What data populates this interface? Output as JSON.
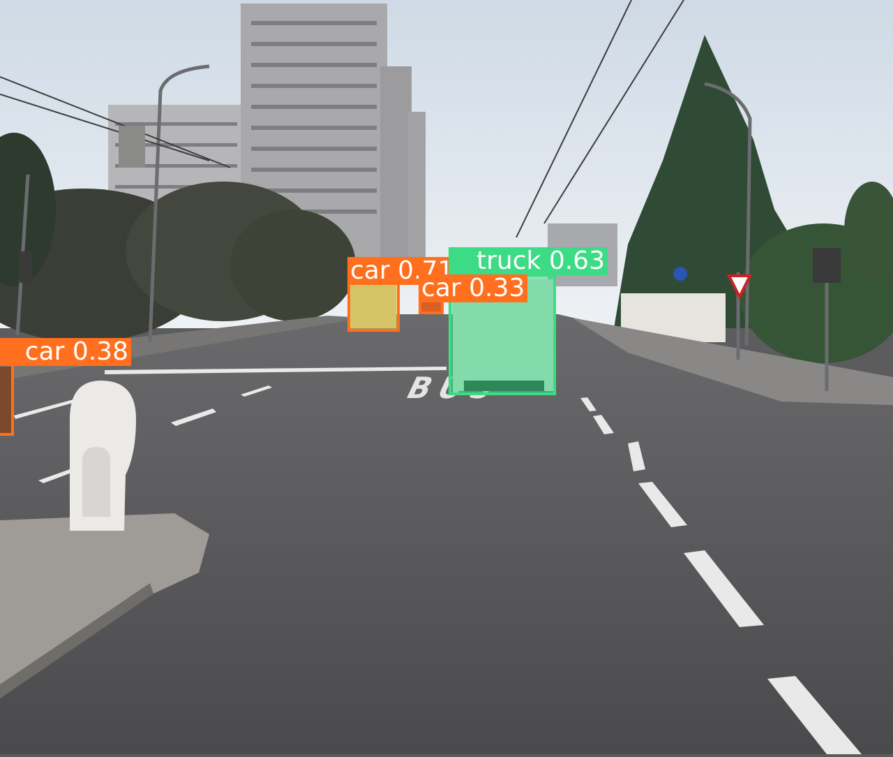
{
  "colors": {
    "car": "#ff6f1e",
    "truck": "#3ddb86",
    "sky": "#dfe6ee",
    "road": "#57575a",
    "label_text": "#ffffff"
  },
  "road_marking": {
    "text": "BUS"
  },
  "detections": [
    {
      "id": "car-1",
      "class": "car",
      "score": "0.71",
      "label": "car 0.71"
    },
    {
      "id": "car-2",
      "class": "car",
      "score": "0.33",
      "label": "car 0.33"
    },
    {
      "id": "car-3",
      "class": "car",
      "score": "0.38",
      "label": "car 0.38"
    },
    {
      "id": "truck-1",
      "class": "truck",
      "score": "0.63",
      "label": "truck 0.63"
    }
  ]
}
